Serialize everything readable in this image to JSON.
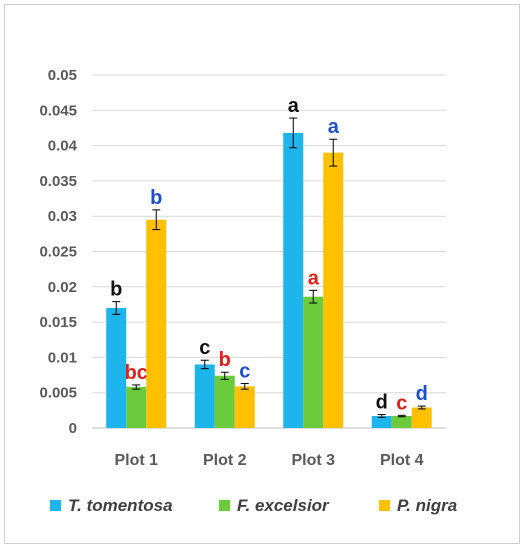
{
  "chart_data": {
    "type": "bar",
    "categories": [
      "Plot 1",
      "Plot 2",
      "Plot 3",
      "Plot 4"
    ],
    "ylim": [
      0,
      0.05
    ],
    "yticks": [
      0,
      0.005,
      0.01,
      0.015,
      0.02,
      0.025,
      0.03,
      0.035,
      0.04,
      0.045,
      0.05
    ],
    "ytick_labels": [
      "0",
      "0.005",
      "0.01",
      "0.015",
      "0.02",
      "0.025",
      "0.03",
      "0.035",
      "0.04",
      "0.045",
      "0.05"
    ],
    "grid": true,
    "legend_position": "bottom",
    "series": [
      {
        "name": "T. tomentosa",
        "color": "#1EB4EC",
        "values": [
          0.017,
          0.009,
          0.0418,
          0.0017
        ],
        "errors": [
          0.0009,
          0.0006,
          0.0021,
          0.0002
        ],
        "letters": [
          "b",
          "c",
          "a",
          "d"
        ],
        "letter_color": "#111111"
      },
      {
        "name": "F. excelsior",
        "color": "#6CCB3C",
        "values": [
          0.0058,
          0.0074,
          0.0186,
          0.0017
        ],
        "errors": [
          0.0003,
          0.0005,
          0.0009,
          0.0001
        ],
        "letters": [
          "bc",
          "b",
          "a",
          "c"
        ],
        "letter_color": "#E0201B"
      },
      {
        "name": "P. nigra",
        "color": "#FFC000",
        "values": [
          0.0295,
          0.0059,
          0.039,
          0.0029
        ],
        "errors": [
          0.0014,
          0.0004,
          0.0019,
          0.0002
        ],
        "letters": [
          "b",
          "c",
          "a",
          "d"
        ],
        "letter_color": "#1F4FC8"
      }
    ],
    "title": "",
    "xlabel": "",
    "ylabel": ""
  }
}
